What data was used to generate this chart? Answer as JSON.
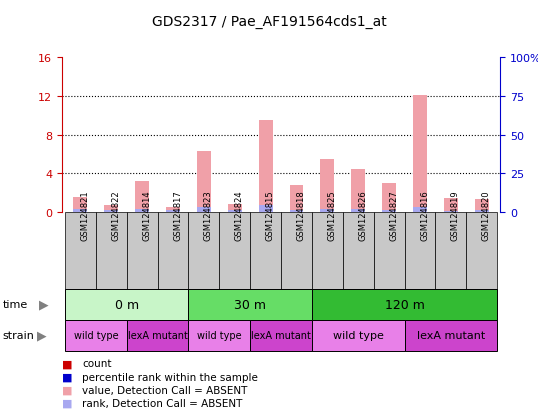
{
  "title": "GDS2317 / Pae_AF191564cds1_at",
  "samples": [
    "GSM124821",
    "GSM124822",
    "GSM124814",
    "GSM124817",
    "GSM124823",
    "GSM124824",
    "GSM124815",
    "GSM124818",
    "GSM124825",
    "GSM124826",
    "GSM124827",
    "GSM124816",
    "GSM124819",
    "GSM124820"
  ],
  "count_values": [
    1.6,
    0.7,
    3.2,
    0.5,
    6.3,
    0.8,
    9.5,
    2.8,
    5.5,
    4.5,
    3.0,
    12.1,
    1.5,
    1.4
  ],
  "rank_values": [
    0.3,
    0.25,
    0.35,
    0.2,
    0.55,
    0.2,
    0.7,
    0.25,
    0.3,
    0.3,
    0.2,
    0.55,
    0.15,
    0.2
  ],
  "ylim_left": [
    0,
    16
  ],
  "ylim_right": [
    0,
    100
  ],
  "yticks_left": [
    0,
    4,
    8,
    12,
    16
  ],
  "yticks_right": [
    0,
    25,
    50,
    75,
    100
  ],
  "ytick_right_labels": [
    "0",
    "25",
    "50",
    "75",
    "100%"
  ],
  "time_groups": [
    {
      "label": "0 m",
      "start": 0,
      "end": 4,
      "color": "#c8f5c8"
    },
    {
      "label": "30 m",
      "start": 4,
      "end": 8,
      "color": "#66dd66"
    },
    {
      "label": "120 m",
      "start": 8,
      "end": 14,
      "color": "#33bb33"
    }
  ],
  "strain_groups": [
    {
      "label": "wild type",
      "start": 0,
      "end": 2,
      "color": "#e880e8"
    },
    {
      "label": "lexA mutant",
      "start": 2,
      "end": 4,
      "color": "#cc44cc"
    },
    {
      "label": "wild type",
      "start": 4,
      "end": 6,
      "color": "#e880e8"
    },
    {
      "label": "lexA mutant",
      "start": 6,
      "end": 8,
      "color": "#cc44cc"
    },
    {
      "label": "wild type",
      "start": 8,
      "end": 11,
      "color": "#e880e8"
    },
    {
      "label": "lexA mutant",
      "start": 11,
      "end": 14,
      "color": "#cc44cc"
    }
  ],
  "bar_color_absent": "#f0a0a8",
  "rank_bar_color_absent": "#a8a8f0",
  "left_axis_color": "#cc0000",
  "right_axis_color": "#0000cc",
  "sample_box_color": "#c8c8c8",
  "legend_items": [
    {
      "color": "#cc0000",
      "label": "count"
    },
    {
      "color": "#0000cc",
      "label": "percentile rank within the sample"
    },
    {
      "color": "#f0a0a8",
      "label": "value, Detection Call = ABSENT"
    },
    {
      "color": "#a8a8f0",
      "label": "rank, Detection Call = ABSENT"
    }
  ]
}
